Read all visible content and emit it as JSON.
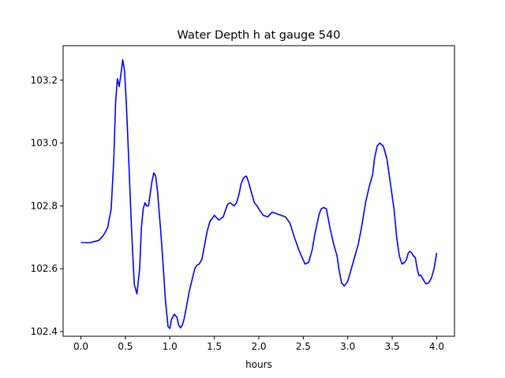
{
  "chart_data": {
    "type": "line",
    "title": "Water Depth h at gauge 540",
    "xlabel": "hours",
    "ylabel": "",
    "xlim": [
      -0.2,
      4.2
    ],
    "ylim": [
      102.385,
      103.31
    ],
    "grid": false,
    "legend": "none",
    "xticks": [
      0.0,
      0.5,
      1.0,
      1.5,
      2.0,
      2.5,
      3.0,
      3.5,
      4.0
    ],
    "xtick_labels": [
      "0.0",
      "0.5",
      "1.0",
      "1.5",
      "2.0",
      "2.5",
      "3.0",
      "3.5",
      "4.0"
    ],
    "yticks": [
      102.4,
      102.6,
      102.8,
      103.0,
      103.2
    ],
    "ytick_labels": [
      "102.4",
      "102.6",
      "102.8",
      "103.0",
      "103.2"
    ],
    "series": [
      {
        "color": "#0000ff",
        "x": [
          0.0,
          0.1,
          0.2,
          0.25,
          0.3,
          0.34,
          0.37,
          0.39,
          0.41,
          0.43,
          0.45,
          0.47,
          0.49,
          0.51,
          0.54,
          0.57,
          0.6,
          0.63,
          0.66,
          0.68,
          0.7,
          0.72,
          0.74,
          0.76,
          0.78,
          0.8,
          0.82,
          0.84,
          0.86,
          0.88,
          0.9,
          0.92,
          0.95,
          0.98,
          1.0,
          1.02,
          1.05,
          1.08,
          1.1,
          1.12,
          1.14,
          1.16,
          1.18,
          1.2,
          1.22,
          1.25,
          1.28,
          1.3,
          1.33,
          1.36,
          1.38,
          1.4,
          1.42,
          1.45,
          1.5,
          1.55,
          1.6,
          1.63,
          1.65,
          1.68,
          1.7,
          1.72,
          1.75,
          1.78,
          1.8,
          1.83,
          1.86,
          1.88,
          1.9,
          1.93,
          1.95,
          1.98,
          2.0,
          2.05,
          2.1,
          2.15,
          2.2,
          2.25,
          2.3,
          2.35,
          2.4,
          2.45,
          2.48,
          2.52,
          2.56,
          2.6,
          2.63,
          2.66,
          2.68,
          2.7,
          2.73,
          2.76,
          2.8,
          2.84,
          2.88,
          2.9,
          2.93,
          2.96,
          3.0,
          3.04,
          3.08,
          3.12,
          3.16,
          3.2,
          3.24,
          3.28,
          3.3,
          3.33,
          3.36,
          3.4,
          3.44,
          3.48,
          3.52,
          3.55,
          3.58,
          3.61,
          3.64,
          3.66,
          3.68,
          3.7,
          3.72,
          3.74,
          3.76,
          3.78,
          3.8,
          3.82,
          3.84,
          3.86,
          3.88,
          3.91,
          3.94,
          3.97,
          4.0
        ],
        "y": [
          102.683,
          102.683,
          102.69,
          102.705,
          102.73,
          102.79,
          102.95,
          103.13,
          103.205,
          103.18,
          103.22,
          103.265,
          103.23,
          103.13,
          102.93,
          102.72,
          102.55,
          102.52,
          102.6,
          102.73,
          102.79,
          102.81,
          102.8,
          102.8,
          102.84,
          102.88,
          102.905,
          102.895,
          102.85,
          102.78,
          102.71,
          102.63,
          102.5,
          102.415,
          102.41,
          102.44,
          102.455,
          102.445,
          102.42,
          102.412,
          102.42,
          102.44,
          102.47,
          102.5,
          102.53,
          102.565,
          102.6,
          102.61,
          102.615,
          102.63,
          102.66,
          102.69,
          102.72,
          102.75,
          102.77,
          102.755,
          102.765,
          102.79,
          102.805,
          102.81,
          102.805,
          102.8,
          102.81,
          102.84,
          102.87,
          102.89,
          102.895,
          102.88,
          102.86,
          102.83,
          102.81,
          102.8,
          102.79,
          102.77,
          102.765,
          102.78,
          102.775,
          102.77,
          102.765,
          102.745,
          102.7,
          102.66,
          102.64,
          102.615,
          102.62,
          102.66,
          102.71,
          102.75,
          102.775,
          102.79,
          102.795,
          102.79,
          102.73,
          102.68,
          102.64,
          102.6,
          102.555,
          102.545,
          102.56,
          102.6,
          102.64,
          102.68,
          102.74,
          102.81,
          102.86,
          102.9,
          102.95,
          102.99,
          103.0,
          102.99,
          102.95,
          102.87,
          102.79,
          102.7,
          102.64,
          102.615,
          102.62,
          102.63,
          102.65,
          102.655,
          102.65,
          102.64,
          102.635,
          102.6,
          102.578,
          102.58,
          102.57,
          102.56,
          102.552,
          102.555,
          102.57,
          102.6,
          102.65
        ]
      }
    ]
  }
}
